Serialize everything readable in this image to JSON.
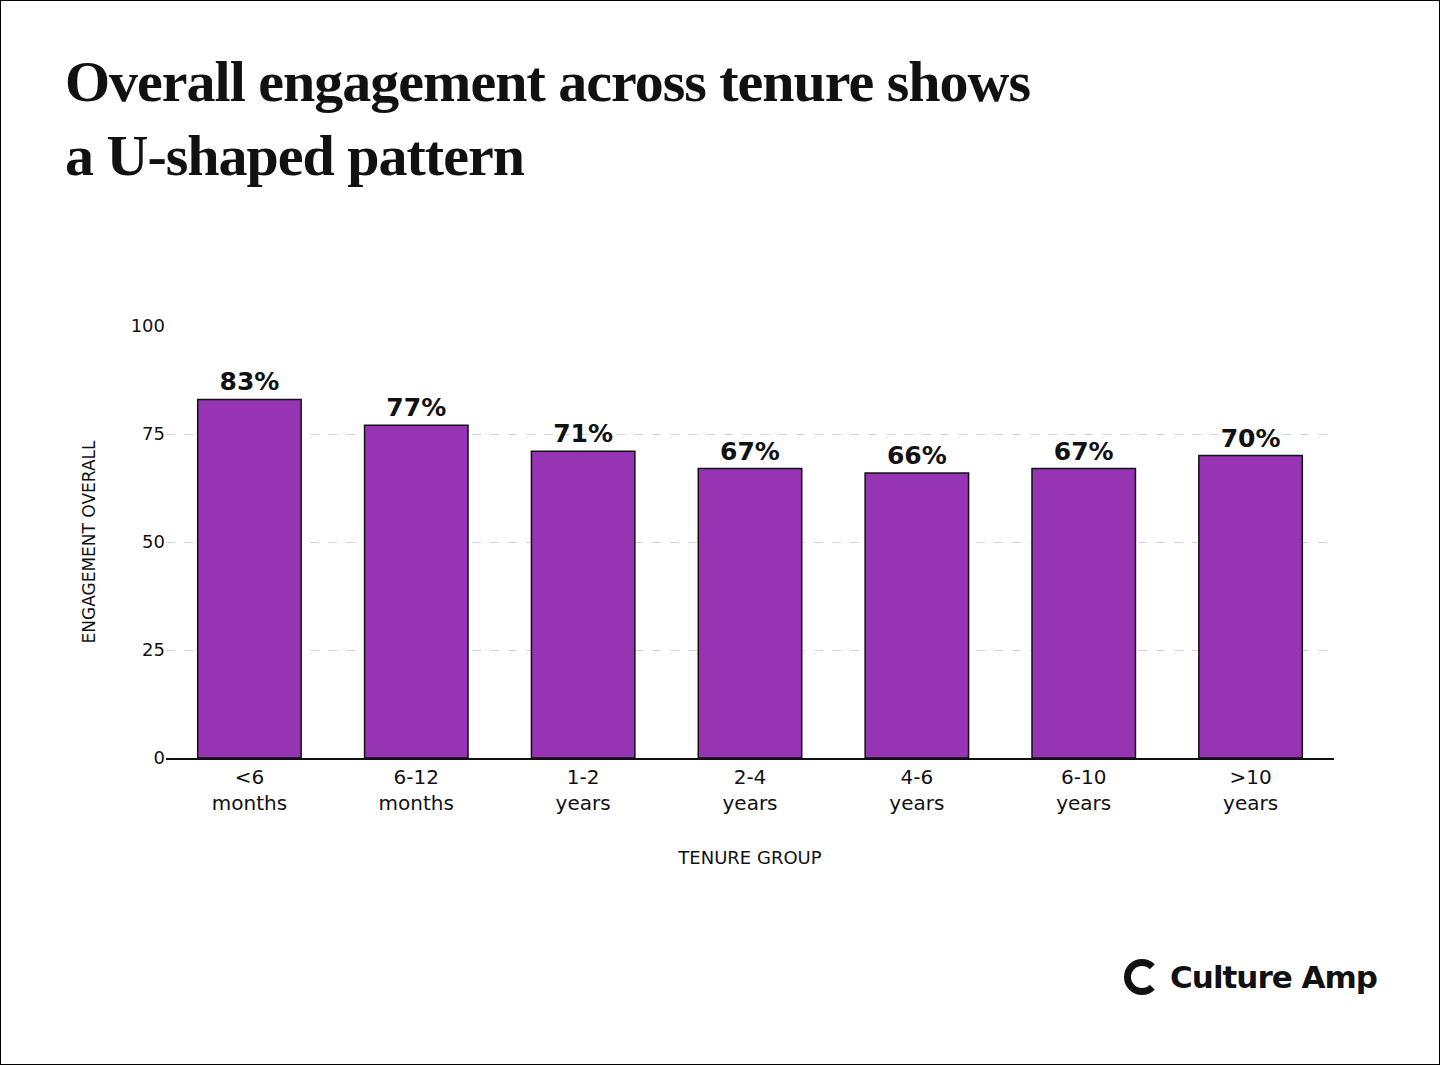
{
  "chart_data": {
    "type": "bar",
    "title": "Overall engagement across tenure shows a U-shaped pattern",
    "x_label": "TENURE GROUP",
    "y_label": "ENGAGEMENT OVERALL",
    "categories": [
      "<6 months",
      "6-12 months",
      "1-2 years",
      "2-4 years",
      "4-6 years",
      "6-10 years",
      ">10 years"
    ],
    "values": [
      83,
      77,
      71,
      67,
      66,
      67,
      70
    ],
    "value_labels": [
      "83%",
      "77%",
      "71%",
      "67%",
      "66%",
      "67%",
      "70%"
    ],
    "color": "#9634b3",
    "ylim": [
      0,
      100
    ],
    "yticks": [
      0,
      25,
      50,
      75,
      100
    ],
    "grid": true,
    "data_labels": true
  },
  "brand": "Culture Amp"
}
